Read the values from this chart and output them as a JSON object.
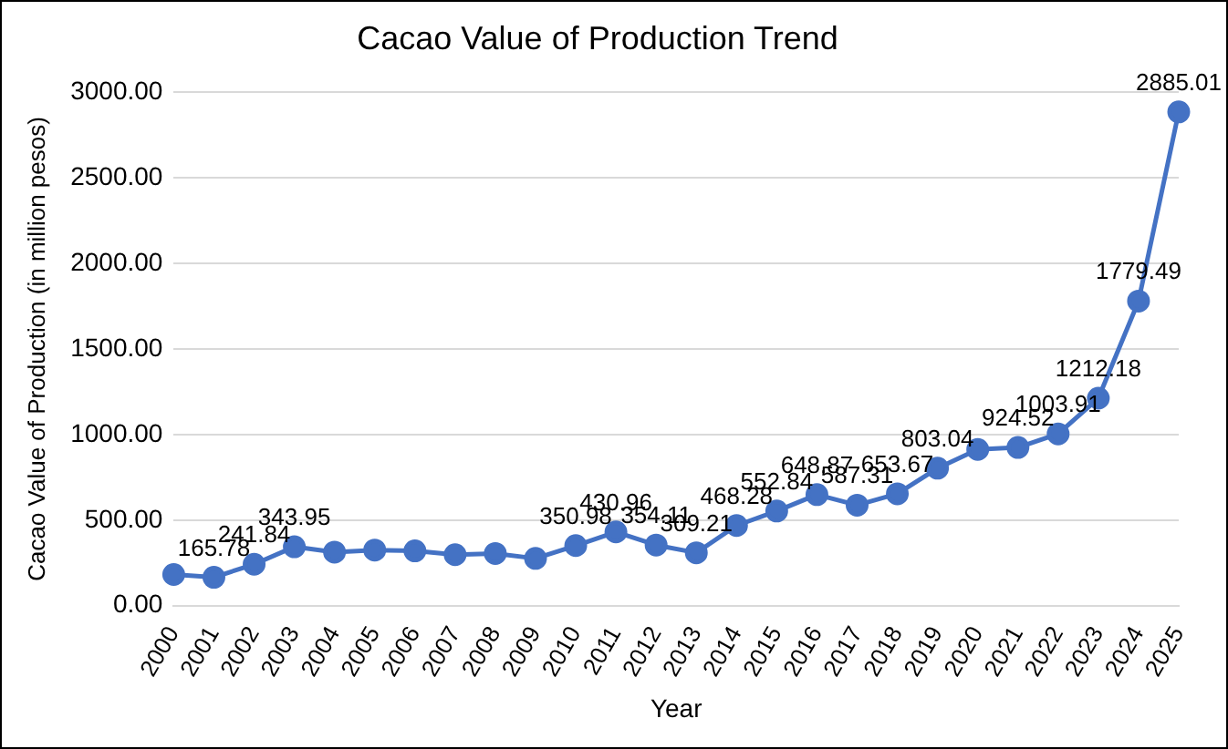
{
  "chart_data": {
    "type": "line",
    "title": "Cacao Value of Production Trend",
    "xlabel": "Year",
    "ylabel": "Cacao Value of Production (in million pesos)",
    "categories": [
      "2000",
      "2001",
      "2002",
      "2003",
      "2004",
      "2005",
      "2006",
      "2007",
      "2008",
      "2009",
      "2010",
      "2011",
      "2012",
      "2013",
      "2014",
      "2015",
      "2016",
      "2017",
      "2018",
      "2019",
      "2020",
      "2021",
      "2022",
      "2023",
      "2024",
      "2025"
    ],
    "series": [
      {
        "color": "#4472c4",
        "values": [
          182,
          165.78,
          241.84,
          343.95,
          313,
          325,
          320,
          298,
          305,
          276,
          350.98,
          430.96,
          354.11,
          309.21,
          468.28,
          552.84,
          648.87,
          587.31,
          653.67,
          803.04,
          913,
          924.52,
          1003.91,
          1212.18,
          1779.49,
          2885.01
        ],
        "value_labels": [
          null,
          "165.78",
          "241.84",
          "343.95",
          null,
          null,
          null,
          null,
          null,
          null,
          "350.98",
          "430.96",
          "354.11",
          "309.21",
          "468.28",
          "552.84",
          "648.87",
          "587.31",
          "653.67",
          "803.04",
          null,
          "924.52",
          "1003.91",
          "1212.18",
          "1779.49",
          "2885.01"
        ]
      }
    ],
    "ylim": [
      0,
      3000
    ],
    "yticks": [
      {
        "value": 0,
        "label": "0.00"
      },
      {
        "value": 500,
        "label": "500.00"
      },
      {
        "value": 1000,
        "label": "1000.00"
      },
      {
        "value": 1500,
        "label": "1500.00"
      },
      {
        "value": 2000,
        "label": "2000.00"
      },
      {
        "value": 2500,
        "label": "2500.00"
      },
      {
        "value": 3000,
        "label": "3000.00"
      }
    ],
    "grid": "y",
    "legend": false,
    "marker": "circle",
    "line_style": "solid"
  }
}
